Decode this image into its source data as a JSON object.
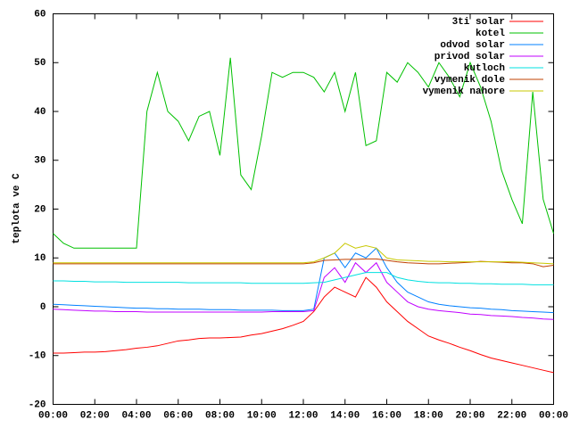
{
  "chart_data": {
    "type": "line",
    "ylabel": "teplota ve C",
    "x": [
      0,
      0.5,
      1,
      1.5,
      2,
      2.5,
      3,
      3.5,
      4,
      4.5,
      5,
      5.5,
      6,
      6.5,
      7,
      7.5,
      8,
      8.5,
      9,
      9.5,
      10,
      10.5,
      11,
      11.5,
      12,
      12.5,
      13,
      13.5,
      14,
      14.5,
      15,
      15.5,
      16,
      16.5,
      17,
      17.5,
      18,
      18.5,
      19,
      19.5,
      20,
      20.5,
      21,
      21.5,
      22,
      22.5,
      23,
      23.5,
      24
    ],
    "xlim": [
      0,
      24
    ],
    "xticks": [
      {
        "value": 0,
        "label": "00:00"
      },
      {
        "value": 2,
        "label": "02:00"
      },
      {
        "value": 4,
        "label": "04:00"
      },
      {
        "value": 6,
        "label": "06:00"
      },
      {
        "value": 8,
        "label": "08:00"
      },
      {
        "value": 10,
        "label": "10:00"
      },
      {
        "value": 12,
        "label": "12:00"
      },
      {
        "value": 14,
        "label": "14:00"
      },
      {
        "value": 16,
        "label": "16:00"
      },
      {
        "value": 18,
        "label": "18:00"
      },
      {
        "value": 20,
        "label": "20:00"
      },
      {
        "value": 22,
        "label": "22:00"
      },
      {
        "value": 24,
        "label": "00:00"
      }
    ],
    "ylim": [
      -20,
      60
    ],
    "yticks": [
      -20,
      -10,
      0,
      10,
      20,
      30,
      40,
      50,
      60
    ],
    "legend": "top-right",
    "series": [
      {
        "name": "3ti solar",
        "color": "#ff0000",
        "values": [
          -9.5,
          -9.5,
          -9.4,
          -9.3,
          -9.3,
          -9.2,
          -9,
          -8.8,
          -8.5,
          -8.3,
          -8,
          -7.5,
          -7,
          -6.8,
          -6.5,
          -6.4,
          -6.4,
          -6.3,
          -6.2,
          -5.8,
          -5.5,
          -5,
          -4.5,
          -3.8,
          -3,
          -1,
          2,
          4,
          3,
          2,
          6,
          4,
          1,
          -1,
          -3,
          -4.5,
          -6,
          -6.8,
          -7.5,
          -8.3,
          -9,
          -9.8,
          -10.5,
          -11,
          -11.5,
          -12,
          -12.5,
          -13,
          -13.5
        ]
      },
      {
        "name": "kotel",
        "color": "#00c000",
        "values": [
          15,
          13,
          12,
          12,
          12,
          12,
          12,
          12,
          12,
          40,
          48,
          40,
          38,
          34,
          39,
          40,
          31,
          51,
          27,
          24,
          35,
          48,
          47,
          48,
          48,
          47,
          44,
          48,
          40,
          48,
          33,
          34,
          48,
          46,
          50,
          48,
          45,
          50,
          47,
          43,
          50,
          45,
          38,
          28,
          22,
          17,
          44,
          22,
          15
        ]
      },
      {
        "name": "odvod solar",
        "color": "#0080ff",
        "values": [
          0.5,
          0.4,
          0.3,
          0.2,
          0.1,
          0,
          -0.1,
          -0.2,
          -0.3,
          -0.3,
          -0.4,
          -0.4,
          -0.5,
          -0.5,
          -0.5,
          -0.6,
          -0.6,
          -0.6,
          -0.7,
          -0.7,
          -0.7,
          -0.7,
          -0.8,
          -0.8,
          -0.8,
          -0.5,
          10,
          11,
          8,
          11,
          10,
          12,
          8,
          5,
          3,
          2,
          1,
          0.5,
          0.2,
          0,
          -0.2,
          -0.3,
          -0.5,
          -0.6,
          -0.8,
          -0.9,
          -1,
          -1.1,
          -1.2
        ]
      },
      {
        "name": "privod solar",
        "color": "#c000ff",
        "values": [
          -0.5,
          -0.6,
          -0.7,
          -0.8,
          -0.9,
          -0.9,
          -1,
          -1,
          -1,
          -1.1,
          -1.1,
          -1.1,
          -1.1,
          -1.1,
          -1.1,
          -1.1,
          -1.1,
          -1.1,
          -1.1,
          -1.1,
          -1.1,
          -1,
          -1,
          -1,
          -1,
          -0.8,
          6,
          8,
          5,
          9,
          7,
          9,
          5,
          3,
          1,
          0,
          -0.5,
          -0.8,
          -1,
          -1.2,
          -1.5,
          -1.6,
          -1.8,
          -1.9,
          -2,
          -2.2,
          -2.3,
          -2.5,
          -2.6
        ]
      },
      {
        "name": "kutloch",
        "color": "#00e0e0",
        "values": [
          5.3,
          5.3,
          5.2,
          5.2,
          5.1,
          5.1,
          5.1,
          5,
          5,
          5,
          5,
          5,
          5,
          4.9,
          4.9,
          4.9,
          4.9,
          4.9,
          4.9,
          4.8,
          4.8,
          4.8,
          4.8,
          4.8,
          4.8,
          4.9,
          5,
          5.5,
          6,
          6.5,
          7,
          7,
          7,
          6,
          5.5,
          5.2,
          5,
          4.9,
          4.9,
          4.8,
          4.8,
          4.7,
          4.7,
          4.6,
          4.6,
          4.6,
          4.5,
          4.5,
          4.5
        ]
      },
      {
        "name": "vymenik dole",
        "color": "#c04000",
        "values": [
          8.8,
          8.8,
          8.8,
          8.8,
          8.8,
          8.8,
          8.8,
          8.8,
          8.8,
          8.8,
          8.8,
          8.8,
          8.8,
          8.8,
          8.8,
          8.8,
          8.8,
          8.8,
          8.8,
          8.8,
          8.8,
          8.8,
          8.8,
          8.8,
          8.8,
          9,
          9.5,
          9.6,
          9.7,
          9.7,
          9.8,
          9.8,
          9.5,
          9.2,
          9,
          8.9,
          8.8,
          8.8,
          8.9,
          9,
          9.1,
          9.3,
          9.2,
          9.1,
          9,
          9,
          8.8,
          8.2,
          8.5
        ]
      },
      {
        "name": "vymenik nahore",
        "color": "#c8c800",
        "values": [
          9,
          9,
          9,
          9,
          9,
          9,
          9,
          9,
          9,
          9,
          9,
          9,
          9,
          9,
          9,
          9,
          9,
          9,
          9,
          9,
          9,
          9,
          9,
          9,
          9,
          9.2,
          10,
          11,
          13,
          12,
          12.5,
          12,
          10,
          9.6,
          9.5,
          9.4,
          9.3,
          9.3,
          9.2,
          9.2,
          9.2,
          9.2,
          9.2,
          9.2,
          9.2,
          9.1,
          9,
          8.9,
          8.8
        ]
      }
    ]
  }
}
